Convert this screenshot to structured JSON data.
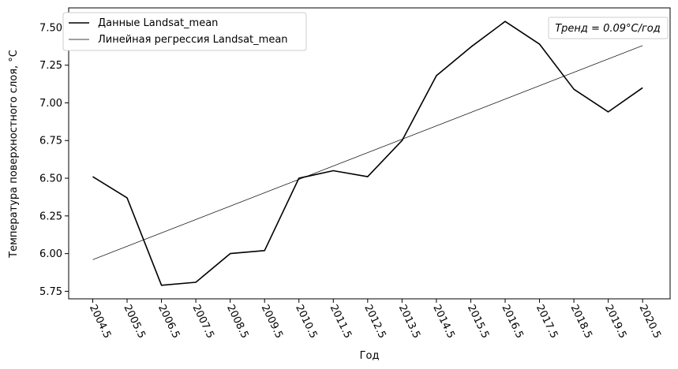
{
  "chart_data": {
    "type": "line",
    "xlabel": "Год",
    "ylabel": "Температура поверхностного слоя, °C",
    "x": [
      2004.5,
      2005.5,
      2006.5,
      2007.5,
      2008.5,
      2009.5,
      2010.5,
      2011.5,
      2012.5,
      2013.5,
      2014.5,
      2015.5,
      2016.5,
      2017.5,
      2018.5,
      2019.5,
      2020.5
    ],
    "x_tick_labels": [
      "2004.5",
      "2005.5",
      "2006.5",
      "2007.5",
      "2008.5",
      "2009.5",
      "2010.5",
      "2011.5",
      "2012.5",
      "2013.5",
      "2014.5",
      "2015.5",
      "2016.5",
      "2017.5",
      "2018.5",
      "2019.5",
      "2020.5"
    ],
    "y_ticks": [
      5.75,
      6.0,
      6.25,
      6.5,
      6.75,
      7.0,
      7.25,
      7.5
    ],
    "y_tick_labels": [
      "5.75",
      "6.00",
      "6.25",
      "6.50",
      "6.75",
      "7.00",
      "7.25",
      "7.50"
    ],
    "xlim": [
      2003.8,
      2021.3
    ],
    "ylim": [
      5.7,
      7.63
    ],
    "grid": false,
    "legend_position": "top-left",
    "series": [
      {
        "name": "Данные Landsat_mean",
        "color": "#000000",
        "values": [
          6.51,
          6.37,
          5.79,
          5.81,
          6.0,
          6.02,
          6.5,
          6.55,
          6.51,
          6.75,
          7.18,
          7.37,
          7.54,
          7.39,
          7.09,
          6.94,
          7.1
        ]
      },
      {
        "name": "Линейная регрессия Landsat_mean",
        "color": "#000000",
        "values_start_end": [
          5.96,
          7.38
        ]
      }
    ],
    "annotation": "Тренд = 0.09°C/год"
  }
}
